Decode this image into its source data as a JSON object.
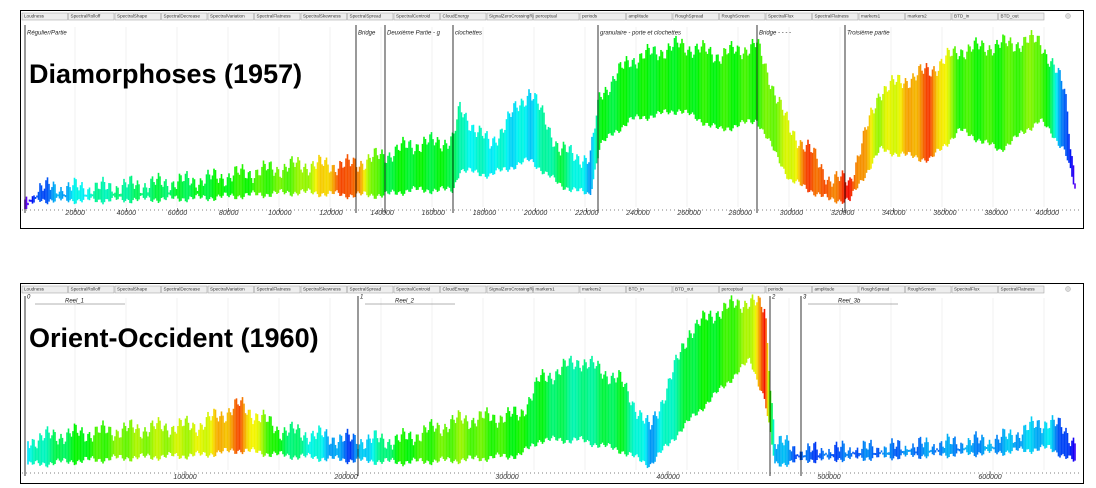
{
  "panels": [
    {
      "title": "Diamorphoses (1957)",
      "tabs": [
        "Loudness",
        "SpectralRolloff",
        "SpectralShape",
        "SpectralDecrease",
        "SpectralVariation",
        "SpectralFlatness",
        "SpectralSkewness",
        "SpectralSpread",
        "SpectralCentroid",
        "CloudEnergy",
        "SignalZeroCrossingRate",
        "perceptual",
        "periods",
        "amplitude",
        "RoughSpread",
        "RoughScreen",
        "SpectralFlux",
        "SpectralFlatness",
        "markers1",
        "markers2",
        "BTD_in",
        "BTD_out"
      ],
      "markers": [
        {
          "label": "Régulier/Partie"
        },
        {
          "label": "Bridge"
        },
        {
          "label": "Deuxième Partie - g"
        },
        {
          "label": "clochettes"
        },
        {
          "label": "granulaire - porte et clochettes"
        },
        {
          "label": "Bridge - - - -"
        },
        {
          "label": "Troisième partie"
        }
      ],
      "xticks": [
        20000,
        40000,
        60000,
        80000,
        100000,
        120000,
        140000,
        160000,
        180000,
        200000,
        220000,
        240000,
        260000,
        280000,
        300000,
        320000,
        340000,
        360000,
        380000,
        400000
      ]
    },
    {
      "title": "Orient-Occident (1960)",
      "tabs": [
        "Loudness",
        "SpectralRolloff",
        "SpectralShape",
        "SpectralDecrease",
        "SpectralVariation",
        "SpectralFlatness",
        "SpectralSkewness",
        "SpectralSpread",
        "SpectralCentroid",
        "CloudEnergy",
        "SignalZeroCrossingRate",
        "markers1",
        "markers2",
        "BTD_in",
        "BTD_out",
        "perceptual",
        "periods",
        "amplitude",
        "RoughSpread",
        "RoughScreen",
        "SpectralFlux",
        "SpectralFlatness"
      ],
      "markers": [
        {
          "label": "0",
          "name": "Reel_1"
        },
        {
          "label": "1",
          "name": "Reel_2"
        },
        {
          "label": "2"
        },
        {
          "label": "3",
          "name": "Reel_3b"
        }
      ],
      "xticks": [
        100000,
        200000,
        300000,
        400000,
        500000,
        600000
      ]
    }
  ]
}
